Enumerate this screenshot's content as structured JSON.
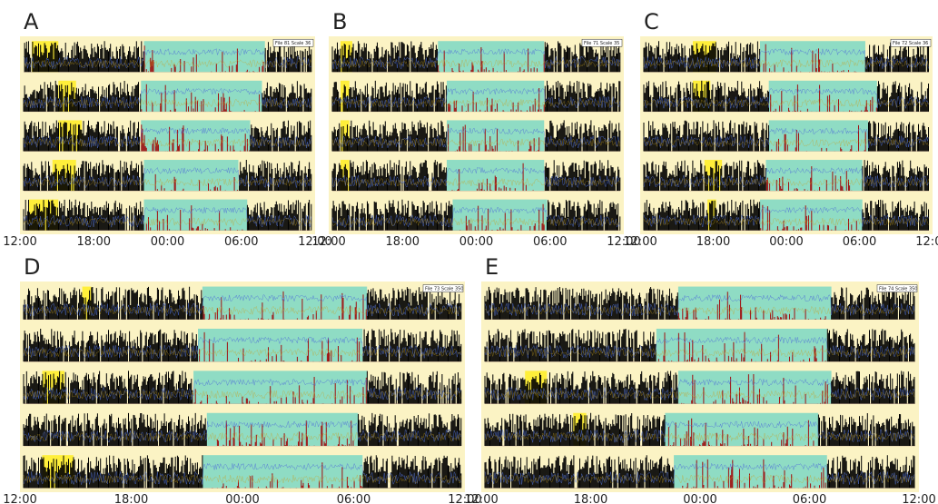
{
  "panels": [
    {
      "label": "A",
      "box": "File 81 Scale 36",
      "ticks": [
        "12:00",
        "18:00",
        "00:00",
        "06:00",
        "12:00"
      ]
    },
    {
      "label": "B",
      "box": "File 71 Scale 35",
      "ticks": [
        "12:00",
        "18:00",
        "00:00",
        "06:00",
        "12:00"
      ]
    },
    {
      "label": "C",
      "box": "File 72 Scale 36",
      "ticks": [
        "12:00",
        "18:00",
        "00:00",
        "06:00",
        "12:00"
      ]
    },
    {
      "label": "D",
      "box": "File 73 Scale 350",
      "ticks": [
        "12:00",
        "18:00",
        "00:00",
        "06:00",
        "12:00"
      ]
    },
    {
      "label": "E",
      "box": "File 74 Scale 350",
      "ticks": [
        "12:00",
        "18:00",
        "00:00",
        "06:00",
        "12:00"
      ]
    }
  ]
}
